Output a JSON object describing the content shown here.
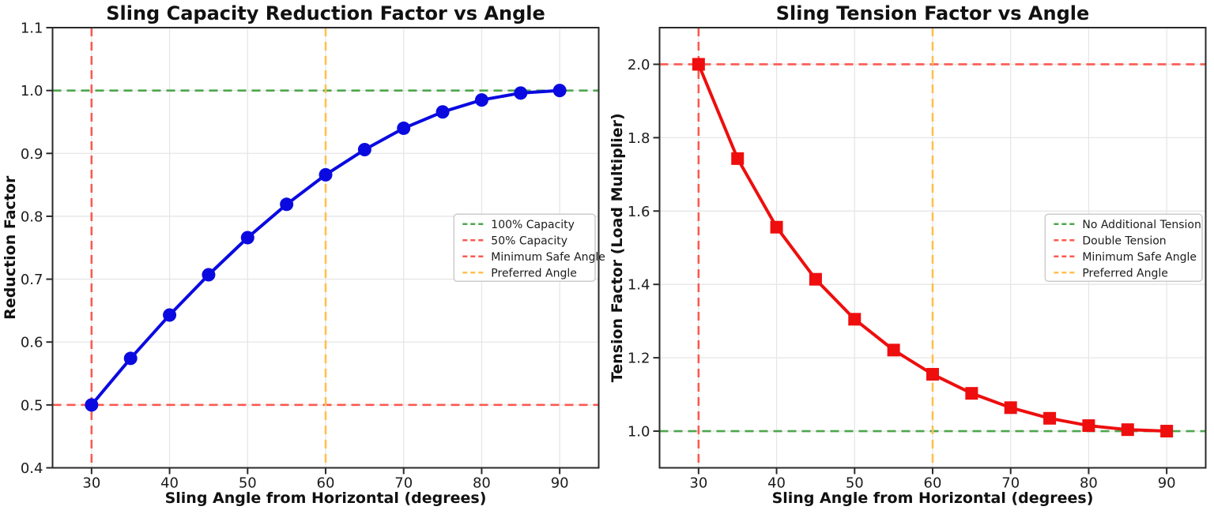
{
  "figure": {
    "background": "#ffffff",
    "grid_color": "#e6e6e6",
    "spine_color": "#2a2a2a",
    "text_color": "#111111",
    "tick_color": "#1c1c1c"
  },
  "chart_data": [
    {
      "id": "capacity-chart",
      "type": "line",
      "title": "Sling Capacity Reduction Factor vs Angle",
      "xlabel": "Sling Angle from Horizontal (degrees)",
      "ylabel": "Reduction Factor",
      "x": [
        30,
        35,
        40,
        45,
        50,
        55,
        60,
        65,
        70,
        75,
        80,
        85,
        90
      ],
      "series": [
        {
          "name": "reduction-factor",
          "values": [
            0.5,
            0.574,
            0.643,
            0.707,
            0.766,
            0.819,
            0.866,
            0.906,
            0.94,
            0.966,
            0.985,
            0.996,
            1.0
          ],
          "color": "#0a0ae0",
          "marker": "circle"
        }
      ],
      "xlim": [
        25,
        95
      ],
      "ylim": [
        0.4,
        1.1
      ],
      "xticks": [
        30,
        40,
        50,
        60,
        70,
        80,
        90
      ],
      "xtick_labels": [
        "30",
        "40",
        "50",
        "60",
        "70",
        "80",
        "90"
      ],
      "yticks": [
        0.4,
        0.5,
        0.6,
        0.7,
        0.8,
        0.9,
        1.0,
        1.1
      ],
      "ytick_labels": [
        "0.4",
        "0.5",
        "0.6",
        "0.7",
        "0.8",
        "0.9",
        "1.0",
        "1.1"
      ],
      "grid": true,
      "legend_position": "center right",
      "ref_lines": [
        {
          "axis": "y",
          "value": 1.0,
          "color": "#4da64d",
          "label": "100% Capacity"
        },
        {
          "axis": "y",
          "value": 0.5,
          "color": "#fb5a50",
          "label": "50% Capacity"
        },
        {
          "axis": "x",
          "value": 30,
          "color": "#fb5a50",
          "label": "Minimum Safe Angle"
        },
        {
          "axis": "x",
          "value": 60,
          "color": "#ffc04f",
          "label": "Preferred Angle"
        }
      ]
    },
    {
      "id": "tension-chart",
      "type": "line",
      "title": "Sling Tension Factor vs Angle",
      "xlabel": "Sling Angle from Horizontal (degrees)",
      "ylabel": "Tension Factor (Load Multiplier)",
      "x": [
        30,
        35,
        40,
        45,
        50,
        55,
        60,
        65,
        70,
        75,
        80,
        85,
        90
      ],
      "series": [
        {
          "name": "tension-factor",
          "values": [
            2.0,
            1.743,
            1.556,
            1.414,
            1.305,
            1.221,
            1.155,
            1.103,
            1.064,
            1.035,
            1.015,
            1.004,
            1.0
          ],
          "color": "#ee0e0e",
          "marker": "square"
        }
      ],
      "xlim": [
        25,
        95
      ],
      "ylim": [
        0.9,
        2.1
      ],
      "xticks": [
        30,
        40,
        50,
        60,
        70,
        80,
        90
      ],
      "xtick_labels": [
        "30",
        "40",
        "50",
        "60",
        "70",
        "80",
        "90"
      ],
      "yticks": [
        1.0,
        1.2,
        1.4,
        1.6,
        1.8,
        2.0
      ],
      "ytick_labels": [
        "1.0",
        "1.2",
        "1.4",
        "1.6",
        "1.8",
        "2.0"
      ],
      "grid": true,
      "legend_position": "center right",
      "ref_lines": [
        {
          "axis": "y",
          "value": 1.0,
          "color": "#4da64d",
          "label": "No Additional Tension"
        },
        {
          "axis": "y",
          "value": 2.0,
          "color": "#fb5a50",
          "label": "Double Tension"
        },
        {
          "axis": "x",
          "value": 30,
          "color": "#fb5a50",
          "label": "Minimum Safe Angle"
        },
        {
          "axis": "x",
          "value": 60,
          "color": "#ffc04f",
          "label": "Preferred Angle"
        }
      ]
    }
  ]
}
